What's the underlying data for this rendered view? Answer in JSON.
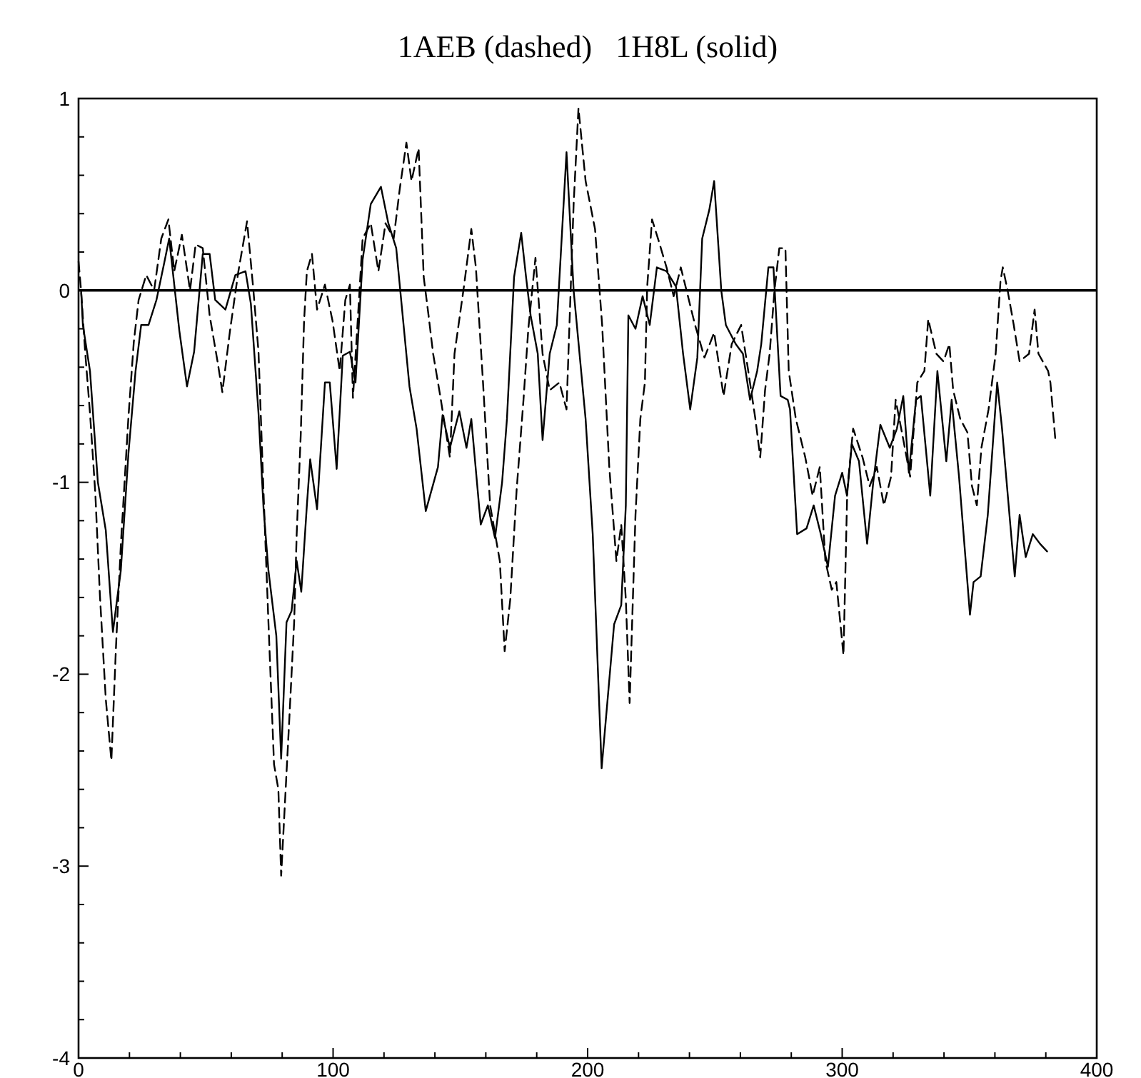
{
  "chart_data": {
    "type": "line",
    "title": "1AEB (dashed)   1H8L (solid)",
    "xlim": [
      0,
      400
    ],
    "ylim": [
      -4,
      1
    ],
    "xticks": [
      0,
      {
        "value": 20,
        "label": null
      },
      {
        "value": 40,
        "label": null
      },
      {
        "value": 60,
        "label": null
      },
      {
        "value": 80,
        "label": null
      },
      100,
      {
        "value": 120,
        "label": null
      },
      {
        "value": 140,
        "label": null
      },
      {
        "value": 160,
        "label": null
      },
      {
        "value": 180,
        "label": null
      },
      200,
      {
        "value": 220,
        "label": null
      },
      {
        "value": 240,
        "label": null
      },
      {
        "value": 260,
        "label": null
      },
      {
        "value": 280,
        "label": null
      },
      300,
      {
        "value": 320,
        "label": null
      },
      {
        "value": 340,
        "label": null
      },
      {
        "value": 360,
        "label": null
      },
      {
        "value": 380,
        "label": null
      },
      400
    ],
    "yticks": [
      -4,
      {
        "value": -3.8,
        "label": null
      },
      {
        "value": -3.6,
        "label": null
      },
      {
        "value": -3.4,
        "label": null
      },
      {
        "value": -3.2,
        "label": null
      },
      -3,
      {
        "value": -2.8,
        "label": null
      },
      {
        "value": -2.6,
        "label": null
      },
      {
        "value": -2.4,
        "label": null
      },
      {
        "value": -2.2,
        "label": null
      },
      -2,
      {
        "value": -1.8,
        "label": null
      },
      {
        "value": -1.6,
        "label": null
      },
      {
        "value": -1.4,
        "label": null
      },
      {
        "value": -1.2,
        "label": null
      },
      -1,
      {
        "value": -0.8,
        "label": null
      },
      {
        "value": -0.6,
        "label": null
      },
      {
        "value": -0.4,
        "label": null
      },
      {
        "value": -0.2,
        "label": null
      },
      0,
      {
        "value": 0.2,
        "label": null
      },
      {
        "value": 0.4,
        "label": null
      },
      {
        "value": 0.6,
        "label": null
      },
      {
        "value": 0.8,
        "label": null
      },
      1
    ],
    "grid": false,
    "marker": "none",
    "ref_lines": [
      {
        "axis": "y",
        "value": 0,
        "color": "#000000",
        "line_style": "solid"
      }
    ],
    "series": [
      {
        "color": "#000000",
        "line_style": "dashed",
        "x": [
          0,
          1,
          2.6,
          4.5,
          6.6,
          8.4,
          10.7,
          12.9,
          14.7,
          16.6,
          19.6,
          21.7,
          23.6,
          26.6,
          29.7,
          32.5,
          35.3,
          37.6,
          40.6,
          43.8,
          46,
          48.8,
          51.5,
          54.6,
          56.5,
          59.5,
          62.8,
          66.2,
          68.7,
          70.7,
          72.7,
          74.6,
          76.8,
          78.5,
          79.6,
          82.7,
          84.7,
          85.7,
          87.3,
          88.6,
          89.7,
          91.7,
          93.7,
          96.8,
          99.8,
          102.6,
          104.8,
          106.6,
          107.8,
          109.8,
          111.6,
          114.8,
          117.8,
          120.6,
          123.8,
          126.2,
          128.8,
          130.8,
          133.6,
          135.6,
          137.5,
          139.3,
          142.1,
          145.9,
          147.7,
          151.4,
          154.3,
          156.1,
          158.9,
          161.7,
          165.5,
          167.4,
          169.6,
          172.1,
          174.8,
          176.7,
          179.5,
          182.3,
          185.1,
          188.9,
          191.7,
          194.5,
          196.4,
          199.2,
          202.9,
          205.7,
          208.5,
          211.3,
          213.2,
          215,
          216.5,
          218.8,
          220.7,
          222.5,
          223.4,
          225.3,
          228.1,
          231,
          233.8,
          236.6,
          239.4,
          242.2,
          245.9,
          249.7,
          253.4,
          256.6,
          260.3,
          263.1,
          265.9,
          267.8,
          269.7,
          271.5,
          273.4,
          275.3,
          277.7,
          279,
          281.8,
          285.5,
          288.4,
          291.2,
          293.4,
          295.9,
          297.7,
          300.5,
          302,
          304.3,
          308,
          310.8,
          313.6,
          316.4,
          319.2,
          321,
          323.9,
          326.7,
          329.5,
          332.3,
          333.8,
          337,
          339.8,
          342.1,
          343.6,
          346.4,
          349.2,
          351,
          352.9,
          354.7,
          357.5,
          360.3,
          362.2,
          363.1,
          365,
          367.4,
          369.7,
          373.4,
          375.6,
          377.1,
          380.9,
          381.8,
          383.7
        ],
        "values": [
          0.15,
          0,
          -0.32,
          -0.64,
          -1.06,
          -1.59,
          -2.13,
          -2.45,
          -1.86,
          -1.33,
          -0.66,
          -0.27,
          -0.05,
          0.08,
          0,
          0.27,
          0.37,
          0.1,
          0.29,
          0,
          0.24,
          0.22,
          -0.13,
          -0.37,
          -0.53,
          -0.21,
          0.1,
          0.36,
          0,
          -0.32,
          -1.06,
          -1.73,
          -2.47,
          -2.6,
          -3.05,
          -2.26,
          -1.73,
          -1.27,
          -0.75,
          -0.16,
          0.1,
          0.19,
          -0.1,
          0.03,
          -0.16,
          -0.42,
          -0.05,
          0.03,
          -0.56,
          -0.13,
          0.27,
          0.35,
          0.1,
          0.35,
          0.27,
          0.53,
          0.77,
          0.57,
          0.74,
          0.07,
          -0.13,
          -0.33,
          -0.55,
          -0.87,
          -0.33,
          0.02,
          0.32,
          0.12,
          -0.48,
          -1.12,
          -1.41,
          -1.88,
          -1.61,
          -1.04,
          -0.57,
          -0.2,
          0.17,
          -0.33,
          -0.52,
          -0.48,
          -0.62,
          0.45,
          0.95,
          0.57,
          0.32,
          -0.18,
          -0.92,
          -1.41,
          -1.22,
          -1.61,
          -2.15,
          -1.17,
          -0.67,
          -0.48,
          0.02,
          0.37,
          0.25,
          0.12,
          -0.03,
          0.12,
          -0.03,
          -0.18,
          -0.35,
          -0.22,
          -0.55,
          -0.28,
          -0.18,
          -0.42,
          -0.67,
          -0.87,
          -0.52,
          -0.33,
          0,
          0.22,
          0.22,
          -0.42,
          -0.67,
          -0.87,
          -1.07,
          -0.92,
          -1.41,
          -1.56,
          -1.52,
          -1.9,
          -1.04,
          -0.72,
          -0.87,
          -1.02,
          -0.92,
          -1.12,
          -0.97,
          -0.57,
          -0.77,
          -0.97,
          -0.48,
          -0.42,
          -0.15,
          -0.33,
          -0.37,
          -0.28,
          -0.52,
          -0.67,
          -0.74,
          -1.02,
          -1.12,
          -0.82,
          -0.62,
          -0.33,
          0.05,
          0.12,
          0,
          -0.18,
          -0.37,
          -0.33,
          -0.1,
          -0.33,
          -0.42,
          -0.48,
          -0.77
        ]
      },
      {
        "color": "#000000",
        "line_style": "solid",
        "x": [
          1,
          1.7,
          4.5,
          7.6,
          10.7,
          13.5,
          16.6,
          19.6,
          22.4,
          24.6,
          27.5,
          30.6,
          33.6,
          35.6,
          39.6,
          42.6,
          45.4,
          48.8,
          51.5,
          53.7,
          57.7,
          61.6,
          65.6,
          67.7,
          70.7,
          72.7,
          74.6,
          77.7,
          79.6,
          81.7,
          83.7,
          85.7,
          87.5,
          89.7,
          91,
          93.7,
          96.8,
          98.7,
          101.4,
          103.8,
          106.6,
          108.8,
          111.6,
          114.8,
          118.8,
          121.7,
          124.8,
          130,
          132.8,
          136.4,
          141.2,
          143,
          145.9,
          149.6,
          152.4,
          154.3,
          158,
          160.8,
          163.6,
          166.4,
          168.3,
          171.1,
          173.9,
          175.8,
          177.6,
          180.4,
          182.3,
          185.1,
          187.9,
          191.7,
          194.5,
          199.2,
          202,
          205.5,
          210.4,
          213.2,
          215,
          216,
          218.8,
          221.6,
          224.4,
          227.2,
          231,
          234.7,
          237.5,
          240.3,
          243.1,
          245,
          247.8,
          249.7,
          252.5,
          254.3,
          258.2,
          261,
          263.8,
          266.6,
          268.2,
          271,
          273,
          275.8,
          278.6,
          279.5,
          282.3,
          286,
          288.8,
          291.6,
          294.4,
          297.2,
          300,
          301.9,
          303.8,
          306.6,
          309.8,
          312.2,
          315,
          318.7,
          321.5,
          324,
          326.2,
          329,
          330.9,
          334.6,
          337.4,
          340.9,
          343,
          345.9,
          350.2,
          351.6,
          354.4,
          357.2,
          360.9,
          362.8,
          367.8,
          369.7,
          372.1,
          374.9,
          377.7,
          380.5
        ],
        "values": [
          0,
          -0.18,
          -0.42,
          -1.0,
          -1.25,
          -1.78,
          -1.46,
          -0.85,
          -0.42,
          -0.18,
          -0.18,
          -0.05,
          0.14,
          0.27,
          -0.21,
          -0.5,
          -0.32,
          0.19,
          0.19,
          -0.05,
          -0.1,
          0.08,
          0.1,
          -0.07,
          -0.64,
          -1.14,
          -1.46,
          -1.8,
          -2.44,
          -1.73,
          -1.67,
          -1.41,
          -1.57,
          -1.12,
          -0.88,
          -1.14,
          -0.48,
          -0.48,
          -0.93,
          -0.34,
          -0.32,
          -0.48,
          0.16,
          0.45,
          0.54,
          0.35,
          0.22,
          -0.5,
          -0.72,
          -1.15,
          -0.92,
          -0.65,
          -0.82,
          -0.63,
          -0.82,
          -0.67,
          -1.22,
          -1.12,
          -1.29,
          -1.0,
          -0.67,
          0.07,
          0.3,
          0.07,
          -0.13,
          -0.33,
          -0.78,
          -0.33,
          -0.18,
          0.72,
          0,
          -0.67,
          -1.27,
          -2.49,
          -1.74,
          -1.64,
          -1.12,
          -0.13,
          -0.2,
          -0.03,
          -0.18,
          0.12,
          0.1,
          0.02,
          -0.33,
          -0.62,
          -0.35,
          0.27,
          0.42,
          0.57,
          0,
          -0.18,
          -0.28,
          -0.33,
          -0.57,
          -0.42,
          -0.28,
          0.12,
          0.12,
          -0.55,
          -0.57,
          -0.62,
          -1.27,
          -1.24,
          -1.12,
          -1.27,
          -1.44,
          -1.07,
          -0.95,
          -1.07,
          -0.8,
          -0.89,
          -1.32,
          -1.0,
          -0.7,
          -0.82,
          -0.72,
          -0.55,
          -0.95,
          -0.57,
          -0.55,
          -1.07,
          -0.42,
          -0.89,
          -0.57,
          -0.97,
          -1.69,
          -1.52,
          -1.49,
          -1.17,
          -0.48,
          -0.72,
          -1.49,
          -1.17,
          -1.39,
          -1.27,
          -1.32,
          -1.36
        ]
      }
    ]
  }
}
